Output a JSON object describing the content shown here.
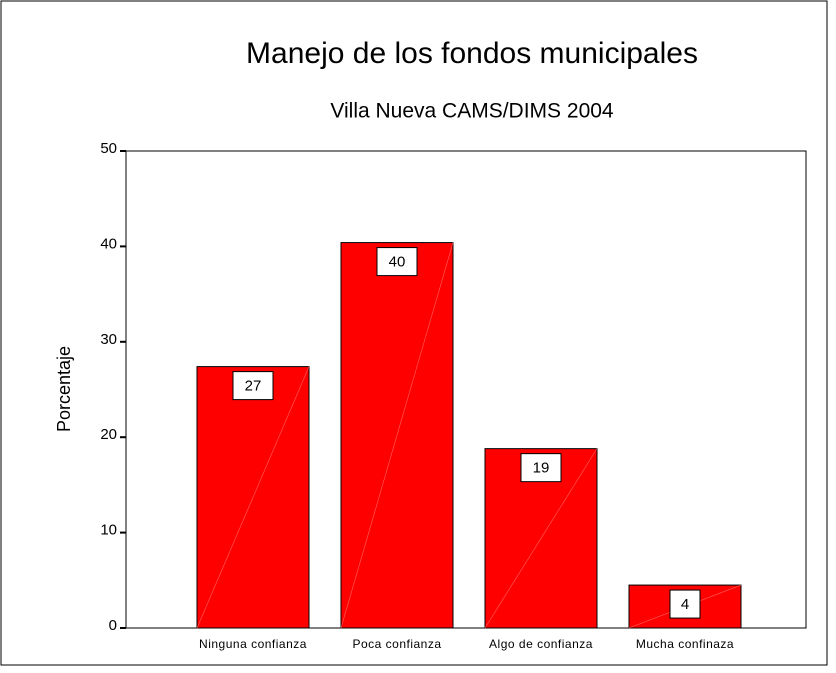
{
  "chart_data": {
    "type": "bar",
    "title": "Manejo de los fondos municipales",
    "subtitle": "Villa Nueva CAMS/DIMS 2004",
    "y_label": "Porcentaje",
    "categories": [
      "Ninguna confianza",
      "Poca confianza",
      "Algo de confianza",
      "Mucha confinaza"
    ],
    "values": [
      27.4,
      40.4,
      18.8,
      4.5
    ],
    "value_labels": [
      "27",
      "40",
      "19",
      "4"
    ],
    "color": "#ff0000",
    "ylim": [
      0,
      50
    ],
    "yticks": [
      0,
      10,
      20,
      30,
      40,
      50
    ],
    "grid": false
  }
}
